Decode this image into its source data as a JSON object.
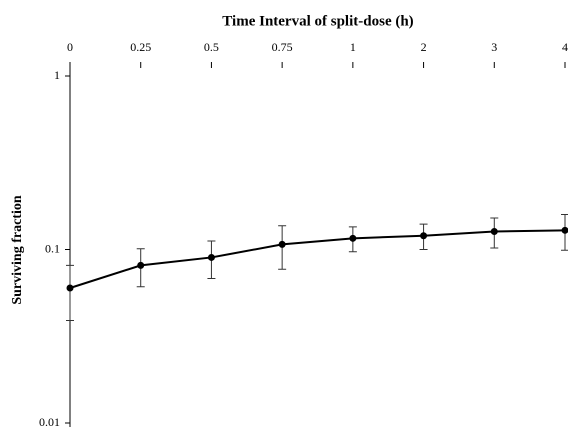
{
  "chart_data": {
    "type": "line",
    "title": "Time Interval of split-dose (h)",
    "y_label": "Surviving fraction",
    "categories": [
      "0",
      "0.25",
      "0.5",
      "0.75",
      "1",
      "2",
      "3",
      "4"
    ],
    "values": [
      0.06,
      0.081,
      0.09,
      0.107,
      0.116,
      0.12,
      0.127,
      0.129
    ],
    "errors": [
      0.021,
      0.02,
      0.022,
      0.03,
      0.019,
      0.02,
      0.025,
      0.03
    ],
    "color": "#000000",
    "ylim": [
      0.01,
      1
    ],
    "yticks": [
      0.01,
      0.1,
      1
    ],
    "log_y": true,
    "grid": false
  }
}
